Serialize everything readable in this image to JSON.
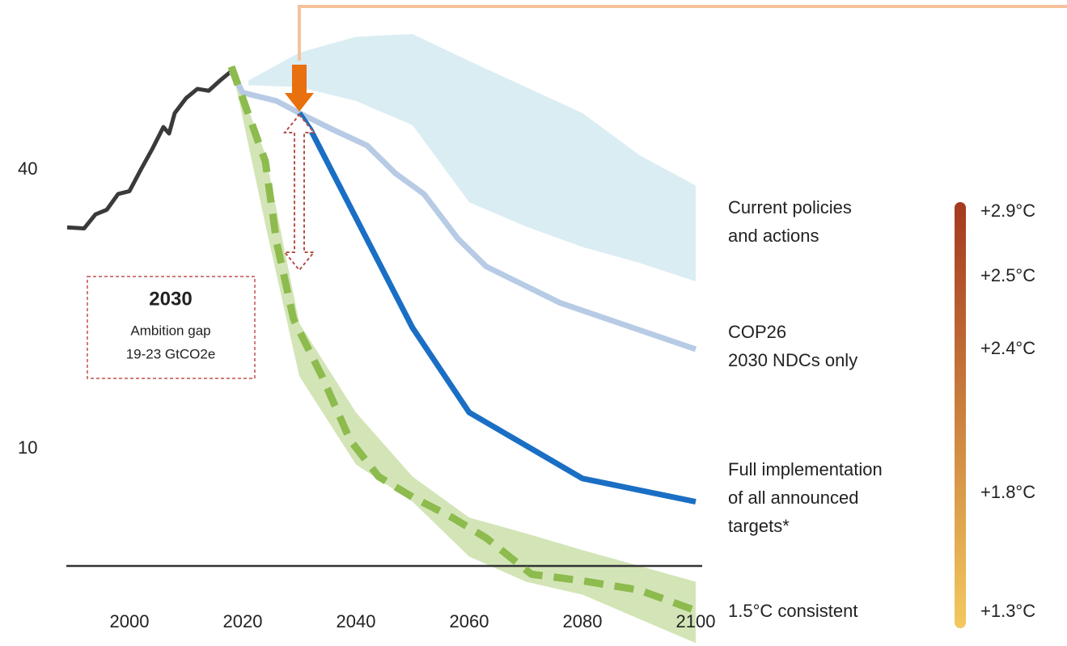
{
  "chart_data": {
    "type": "line",
    "xlim": [
      1988,
      2100
    ],
    "ylim": [
      -11,
      58
    ],
    "xticks": [
      2000,
      2020,
      2040,
      2060,
      2080,
      2100
    ],
    "yticks": [
      10,
      40
    ],
    "bands": [
      {
        "name": [
          "Current policies",
          "and actions"
        ],
        "color": "#daedf3",
        "x": [
          2021,
          2030,
          2040,
          2050,
          2060,
          2070,
          2080,
          2090,
          2100
        ],
        "high": [
          49.6,
          52.6,
          54.3,
          54.6,
          51.7,
          48.9,
          46.1,
          41.6,
          38.3
        ],
        "low": [
          49.1,
          48.9,
          47.4,
          44.8,
          36.5,
          33.9,
          31.7,
          30.0,
          28.0
        ]
      },
      {
        "color": "#d3e5b7",
        "x": [
          2018,
          2024,
          2030,
          2040,
          2050,
          2060,
          2070,
          2080,
          2090,
          2100
        ],
        "high": [
          51.3,
          41.7,
          23.5,
          13.9,
          7.0,
          2.6,
          0.9,
          -0.9,
          -2.6,
          -4.3
        ],
        "low": [
          51.3,
          34.1,
          17.8,
          8.3,
          4.3,
          -1.6,
          -4.3,
          -5.7,
          -8.3,
          -10.9
        ]
      }
    ],
    "series": [
      {
        "color": "#3a3a3a",
        "x": [
          1989,
          1992,
          1994,
          1996,
          1998,
          2000,
          2002,
          2004,
          2006,
          2007,
          2008,
          2010,
          2012,
          2014,
          2016,
          2018
        ],
        "values": [
          33.8,
          33.7,
          35.2,
          35.7,
          37.4,
          37.7,
          40.0,
          42.2,
          44.6,
          43.9,
          46.1,
          47.7,
          48.7,
          48.5,
          49.6,
          50.6
        ]
      },
      {
        "name": [
          "COP26",
          "2030 NDCs only"
        ],
        "color": "#b7cbe5",
        "x": [
          2018,
          2020,
          2026,
          2030,
          2036,
          2042,
          2047,
          2052,
          2058,
          2063,
          2076,
          2100
        ],
        "values": [
          50.6,
          48.3,
          47.4,
          46.1,
          44.3,
          42.6,
          39.6,
          37.4,
          32.6,
          29.6,
          25.7,
          20.7
        ]
      },
      {
        "name": [
          "Full implementation",
          "of all announced",
          "targets*"
        ],
        "color": "#1a6fc4",
        "x": [
          2030,
          2032,
          2050,
          2060,
          2080,
          2100
        ],
        "values": [
          46.1,
          44.3,
          23.0,
          13.9,
          6.8,
          4.3
        ]
      },
      {
        "name": [
          "1.5°C consistent"
        ],
        "color": "#8dbb4e",
        "dashed": true,
        "x": [
          2018,
          2024,
          2026,
          2029,
          2034,
          2039,
          2044,
          2050,
          2057,
          2063,
          2071,
          2080,
          2090,
          2100
        ],
        "values": [
          51.1,
          40.9,
          32.2,
          23.9,
          17.8,
          10.9,
          7.0,
          4.8,
          2.6,
          0.4,
          -3.5,
          -4.2,
          -5.2,
          -7.4
        ]
      }
    ],
    "temperatures": [
      "+2.9°C",
      "+2.5°C",
      "+2.4°C",
      "+1.8°C",
      "+1.3°C"
    ],
    "scale_colors": [
      "#a4391f",
      "#f3c95e"
    ],
    "annotation": {
      "title": "2030",
      "lines": [
        "Ambition gap",
        "19-23 GtCO2e"
      ]
    }
  }
}
